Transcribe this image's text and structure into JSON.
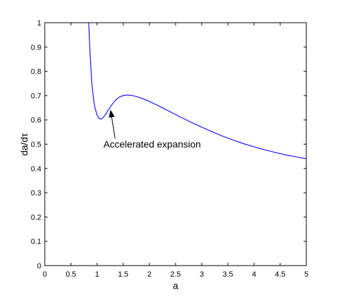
{
  "chart_data": {
    "type": "line",
    "title": "",
    "xlabel": "a",
    "ylabel": "da/dτ",
    "xlim": [
      0,
      5
    ],
    "ylim": [
      0,
      1
    ],
    "xticks": [
      0,
      0.5,
      1,
      1.5,
      2,
      2.5,
      3,
      3.5,
      4,
      4.5,
      5
    ],
    "xtick_labels": [
      "0",
      "0.5",
      "1",
      "1.5",
      "2",
      "2.5",
      "3",
      "3.5",
      "4",
      "4.5",
      "5"
    ],
    "yticks": [
      0,
      0.1,
      0.2,
      0.3,
      0.4,
      0.5,
      0.6,
      0.7,
      0.8,
      0.9,
      1
    ],
    "ytick_labels": [
      "0",
      "0.1",
      "0.2",
      "0.3",
      "0.4",
      "0.5",
      "0.6",
      "0.7",
      "0.8",
      "0.9",
      "1"
    ],
    "grid": false,
    "series": [
      {
        "color": "#0000ff",
        "x": [
          0.84,
          0.86,
          0.88,
          0.9,
          0.93,
          0.96,
          1.0,
          1.04,
          1.08,
          1.12,
          1.16,
          1.2,
          1.25,
          1.3,
          1.35,
          1.4,
          1.45,
          1.5,
          1.55,
          1.6,
          1.65,
          1.7,
          1.8,
          1.9,
          2.0,
          2.2,
          2.4,
          2.6,
          2.8,
          3.0,
          3.2,
          3.4,
          3.6,
          3.8,
          4.0,
          4.2,
          4.4,
          4.6,
          4.8,
          5.0
        ],
        "y": [
          1.0,
          0.9,
          0.82,
          0.75,
          0.69,
          0.65,
          0.62,
          0.605,
          0.603,
          0.61,
          0.622,
          0.635,
          0.652,
          0.667,
          0.68,
          0.69,
          0.696,
          0.7,
          0.702,
          0.702,
          0.701,
          0.699,
          0.693,
          0.685,
          0.676,
          0.655,
          0.633,
          0.611,
          0.59,
          0.57,
          0.551,
          0.533,
          0.517,
          0.502,
          0.489,
          0.477,
          0.466,
          0.456,
          0.448,
          0.44
        ]
      }
    ],
    "annotations": [
      {
        "text": "Accelerated expansion",
        "text_x": 1.45,
        "text_y": 0.5,
        "arrow_to": [
          1.26,
          0.638
        ]
      }
    ]
  }
}
